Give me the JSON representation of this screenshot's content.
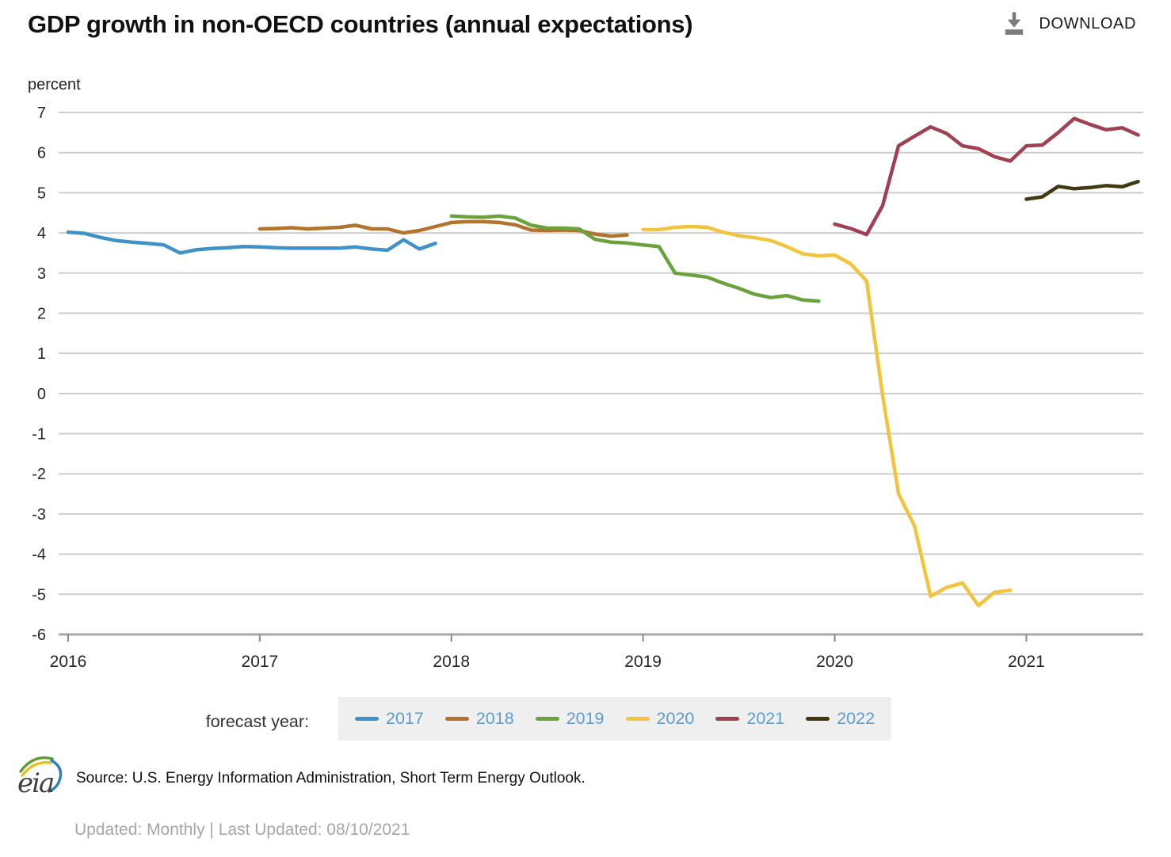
{
  "header": {
    "title": "GDP growth in non-OECD countries (annual expectations)",
    "download_label": "DOWNLOAD"
  },
  "chart": {
    "unit_label": "percent",
    "y_ticks": [
      7,
      6,
      5,
      4,
      3,
      2,
      1,
      0,
      -1,
      -2,
      -3,
      -4,
      -5,
      -6
    ],
    "x_ticks": [
      "2016",
      "2017",
      "2018",
      "2019",
      "2020",
      "2021"
    ]
  },
  "chart_data": {
    "type": "line",
    "title": "GDP growth in non-OECD countries (annual expectations)",
    "ylabel": "percent",
    "ylim": [
      -6,
      7
    ],
    "grid": true,
    "x_axis": {
      "unit": "month",
      "start": "2016-01",
      "tick_labels": [
        "2016",
        "2017",
        "2018",
        "2019",
        "2020",
        "2021"
      ]
    },
    "legend_label": "forecast year:",
    "legend_position": "bottom",
    "series": [
      {
        "name": "2017",
        "color": "#4191C9",
        "start": "2016-01",
        "start_month_index": 0,
        "values": [
          4.02,
          3.99,
          3.89,
          3.81,
          3.77,
          3.74,
          3.7,
          3.5,
          3.58,
          3.61,
          3.63,
          3.66,
          3.65,
          3.63,
          3.62,
          3.62,
          3.62,
          3.62,
          3.65,
          3.6,
          3.57,
          3.83,
          3.6,
          3.74
        ]
      },
      {
        "name": "2018",
        "color": "#B3732C",
        "start": "2017-01",
        "start_month_index": 12,
        "values": [
          4.1,
          4.11,
          4.13,
          4.1,
          4.12,
          4.14,
          4.19,
          4.1,
          4.1,
          4.0,
          4.06,
          4.16,
          4.26,
          4.28,
          4.28,
          4.26,
          4.2,
          4.07,
          4.06,
          4.07,
          4.06,
          3.97,
          3.92,
          3.95
        ]
      },
      {
        "name": "2019",
        "color": "#6AA23C",
        "start": "2018-01",
        "start_month_index": 24,
        "values": [
          4.42,
          4.4,
          4.39,
          4.42,
          4.37,
          4.19,
          4.12,
          4.12,
          4.1,
          3.84,
          3.77,
          3.75,
          3.7,
          3.66,
          3.0,
          2.95,
          2.9,
          2.75,
          2.62,
          2.47,
          2.39,
          2.44,
          2.33,
          2.3
        ]
      },
      {
        "name": "2020",
        "color": "#F2C43D",
        "start": "2019-01",
        "start_month_index": 36,
        "values": [
          4.08,
          4.08,
          4.14,
          4.16,
          4.14,
          4.02,
          3.93,
          3.88,
          3.81,
          3.66,
          3.48,
          3.43,
          3.45,
          3.23,
          2.8,
          -0.05,
          -2.5,
          -3.3,
          -5.05,
          -4.83,
          -4.72,
          -5.28,
          -4.95,
          -4.9
        ]
      },
      {
        "name": "2021",
        "color": "#A04051",
        "start": "2020-01",
        "start_month_index": 48,
        "values": [
          4.22,
          4.11,
          3.96,
          4.68,
          6.17,
          6.41,
          6.64,
          6.48,
          6.17,
          6.1,
          5.9,
          5.79,
          6.17,
          6.19,
          6.5,
          6.85,
          6.7,
          6.57,
          6.62,
          6.44
        ]
      },
      {
        "name": "2022",
        "color": "#423911",
        "start": "2021-01",
        "start_month_index": 60,
        "values": [
          4.84,
          4.9,
          5.16,
          5.1,
          5.13,
          5.18,
          5.15,
          5.28
        ]
      }
    ]
  },
  "legend": {
    "label": "forecast year:"
  },
  "footer": {
    "logo_text": "eia",
    "source": "Source: U.S. Energy Information Administration, Short Term Energy Outlook.",
    "updated": "Updated: Monthly | Last Updated: 08/10/2021"
  }
}
